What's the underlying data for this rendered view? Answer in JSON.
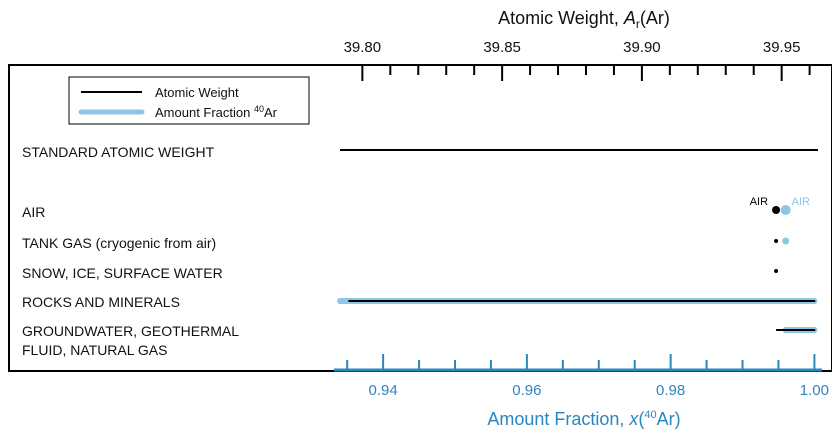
{
  "chart_data": {
    "type": "range",
    "top_axis": {
      "title_prefix": "Atomic Weight, ",
      "title_symbol": "A",
      "title_sub": "r",
      "title_suffix": "(Ar)",
      "range": [
        39.792,
        39.963
      ],
      "major_ticks": [
        39.8,
        39.85,
        39.9,
        39.95
      ],
      "tick_labels": [
        "39.80",
        "39.85",
        "39.90",
        "39.95"
      ],
      "minor_step": 0.01
    },
    "bottom_axis": {
      "title_prefix": "Amount Fraction, ",
      "title_symbol": "x",
      "title_paren_open": "(",
      "title_sup": "40",
      "title_element": "Ar",
      "title_paren_close": ")",
      "range": [
        0.934,
        1.0005
      ],
      "major_ticks": [
        0.94,
        0.96,
        0.98,
        1.0
      ],
      "tick_labels": [
        "0.94",
        "0.96",
        "0.98",
        "1.00"
      ],
      "minor_step": 0.005
    },
    "legend": {
      "position": "top-left",
      "items": [
        {
          "label": "Atomic Weight",
          "color": "#000000"
        },
        {
          "label_prefix": "Amount Fraction ",
          "label_sup": "40",
          "label_suffix": "Ar",
          "color": "#8ec6e3"
        }
      ]
    },
    "categories": [
      {
        "lines": [
          "STANDARD ATOMIC WEIGHT"
        ],
        "atomic_weight": {
          "type": "range",
          "min": 39.792,
          "max": 39.963
        },
        "amount_fraction": null
      },
      {
        "lines": [
          "AIR"
        ],
        "atomic_weight": {
          "type": "point",
          "value": 39.948,
          "label": "AIR"
        },
        "amount_fraction": {
          "type": "point",
          "value": 0.996,
          "label": "AIR"
        }
      },
      {
        "lines": [
          "TANK GAS (cryogenic from air)"
        ],
        "atomic_weight": {
          "type": "point",
          "value": 39.948
        },
        "amount_fraction": {
          "type": "point",
          "value": 0.996
        }
      },
      {
        "lines": [
          "SNOW, ICE, SURFACE WATER"
        ],
        "atomic_weight": {
          "type": "point",
          "value": 39.948
        },
        "amount_fraction": null
      },
      {
        "lines": [
          "ROCKS AND MINERALS"
        ],
        "atomic_weight": {
          "type": "range",
          "min": 39.795,
          "max": 39.962
        },
        "amount_fraction": {
          "type": "range",
          "min": 0.934,
          "max": 1.0
        }
      },
      {
        "lines": [
          "GROUNDWATER, GEOTHERMAL",
          "FLUID, NATURAL GAS"
        ],
        "atomic_weight": {
          "type": "range",
          "min": 39.948,
          "max": 39.962
        },
        "amount_fraction": {
          "type": "range",
          "min": 0.996,
          "max": 1.0
        }
      }
    ],
    "colors": {
      "atomic_weight": "#000000",
      "amount_fraction": "#8ec6e3",
      "bottom_axis": "#2a86bf"
    }
  }
}
